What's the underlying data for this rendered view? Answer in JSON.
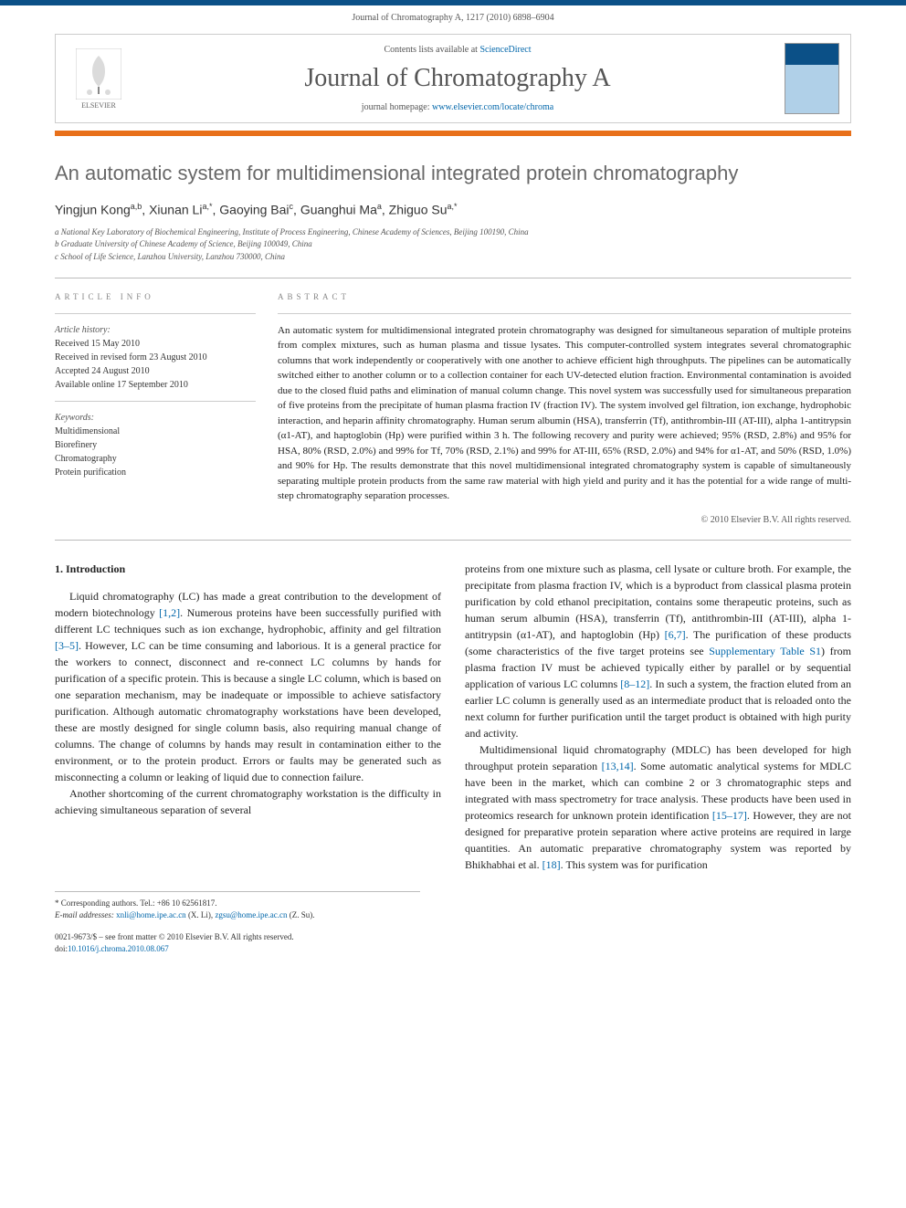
{
  "journal_ref": "Journal of Chromatography A, 1217 (2010) 6898–6904",
  "header": {
    "contents_prefix": "Contents lists available at ",
    "contents_link": "ScienceDirect",
    "journal_title": "Journal of Chromatography A",
    "homepage_prefix": "journal homepage: ",
    "homepage_link": "www.elsevier.com/locate/chroma",
    "elsevier_label": "ELSEVIER"
  },
  "article": {
    "title": "An automatic system for multidimensional integrated protein chromatography",
    "authors_html": "Yingjun Kong<sup>a,b</sup>, Xiunan Li<sup>a,*</sup>, Gaoying Bai<sup>c</sup>, Guanghui Ma<sup>a</sup>, Zhiguo Su<sup>a,*</sup>",
    "affiliations": [
      "a National Key Laboratory of Biochemical Engineering, Institute of Process Engineering, Chinese Academy of Sciences, Beijing 100190, China",
      "b Graduate University of Chinese Academy of Science, Beijing 100049, China",
      "c School of Life Science, Lanzhou University, Lanzhou 730000, China"
    ]
  },
  "article_info": {
    "heading": "article info",
    "history_label": "Article history:",
    "history": [
      "Received 15 May 2010",
      "Received in revised form 23 August 2010",
      "Accepted 24 August 2010",
      "Available online 17 September 2010"
    ],
    "keywords_label": "Keywords:",
    "keywords": [
      "Multidimensional",
      "Biorefinery",
      "Chromatography",
      "Protein purification"
    ]
  },
  "abstract": {
    "heading": "abstract",
    "text": "An automatic system for multidimensional integrated protein chromatography was designed for simultaneous separation of multiple proteins from complex mixtures, such as human plasma and tissue lysates. This computer-controlled system integrates several chromatographic columns that work independently or cooperatively with one another to achieve efficient high throughputs. The pipelines can be automatically switched either to another column or to a collection container for each UV-detected elution fraction. Environmental contamination is avoided due to the closed fluid paths and elimination of manual column change. This novel system was successfully used for simultaneous preparation of five proteins from the precipitate of human plasma fraction IV (fraction IV). The system involved gel filtration, ion exchange, hydrophobic interaction, and heparin affinity chromatography. Human serum albumin (HSA), transferrin (Tf), antithrombin-III (AT-III), alpha 1-antitrypsin (α1-AT), and haptoglobin (Hp) were purified within 3 h. The following recovery and purity were achieved; 95% (RSD, 2.8%) and 95% for HSA, 80% (RSD, 2.0%) and 99% for Tf, 70% (RSD, 2.1%) and 99% for AT-III, 65% (RSD, 2.0%) and 94% for α1-AT, and 50% (RSD, 1.0%) and 90% for Hp. The results demonstrate that this novel multidimensional integrated chromatography system is capable of simultaneously separating multiple protein products from the same raw material with high yield and purity and it has the potential for a wide range of multi-step chromatography separation processes.",
    "copyright": "© 2010 Elsevier B.V. All rights reserved."
  },
  "introduction": {
    "heading": "1. Introduction",
    "para1_pre": "Liquid chromatography (LC) has made a great contribution to the development of modern biotechnology ",
    "ref1": "[1,2]",
    "para1_mid": ". Numerous proteins have been successfully purified with different LC techniques such as ion exchange, hydrophobic, affinity and gel filtration ",
    "ref2": "[3–5]",
    "para1_post": ". However, LC can be time consuming and laborious. It is a general practice for the workers to connect, disconnect and re-connect LC columns by hands for purification of a specific protein. This is because a single LC column, which is based on one separation mechanism, may be inadequate or impossible to achieve satisfactory purification. Although automatic chromatography workstations have been developed, these are mostly designed for single column basis, also requiring manual change of columns. The change of columns by hands may result in contamination either to the environment, or to the protein product. Errors or faults may be generated such as misconnecting a column or leaking of liquid due to connection failure.",
    "para2": "Another shortcoming of the current chromatography workstation is the difficulty in achieving simultaneous separation of several",
    "col2_p1_pre": "proteins from one mixture such as plasma, cell lysate or culture broth. For example, the precipitate from plasma fraction IV, which is a byproduct from classical plasma protein purification by cold ethanol precipitation, contains some therapeutic proteins, such as human serum albumin (HSA), transferrin (Tf), antithrombin-III (AT-III), alpha 1-antitrypsin (α1-AT), and haptoglobin (Hp) ",
    "ref3": "[6,7]",
    "col2_p1_mid": ". The purification of these products (some characteristics of the five target proteins see ",
    "supp_link": "Supplementary Table S1",
    "col2_p1_mid2": ") from plasma fraction IV must be achieved typically either by parallel or by sequential application of various LC columns ",
    "ref4": "[8–12]",
    "col2_p1_post": ". In such a system, the fraction eluted from an earlier LC column is generally used as an intermediate product that is reloaded onto the next column for further purification until the target product is obtained with high purity and activity.",
    "col2_p2_pre": "Multidimensional liquid chromatography (MDLC) has been developed for high throughput protein separation ",
    "ref5": "[13,14]",
    "col2_p2_mid": ". Some automatic analytical systems for MDLC have been in the market, which can combine 2 or 3 chromatographic steps and integrated with mass spectrometry for trace analysis. These products have been used in proteomics research for unknown protein identification ",
    "ref6": "[15–17]",
    "col2_p2_mid2": ". However, they are not designed for preparative protein separation where active proteins are required in large quantities. An automatic preparative chromatography system was reported by Bhikhabhai et al. ",
    "ref7": "[18]",
    "col2_p2_post": ". This system was for purification"
  },
  "footnotes": {
    "corr": "* Corresponding authors. Tel.: +86 10 62561817.",
    "email_label": "E-mail addresses: ",
    "email1": "xnli@home.ipe.ac.cn",
    "email1_who": " (X. Li), ",
    "email2": "zgsu@home.ipe.ac.cn",
    "email2_who": " (Z. Su)."
  },
  "footer": {
    "line1": "0021-9673/$ – see front matter © 2010 Elsevier B.V. All rights reserved.",
    "doi_prefix": "doi:",
    "doi": "10.1016/j.chroma.2010.08.067"
  },
  "colors": {
    "top_bar": "#0b5087",
    "orange_bar": "#e8701a",
    "title": "#686868",
    "link": "#0066aa",
    "text": "#222222",
    "meta": "#888888"
  }
}
